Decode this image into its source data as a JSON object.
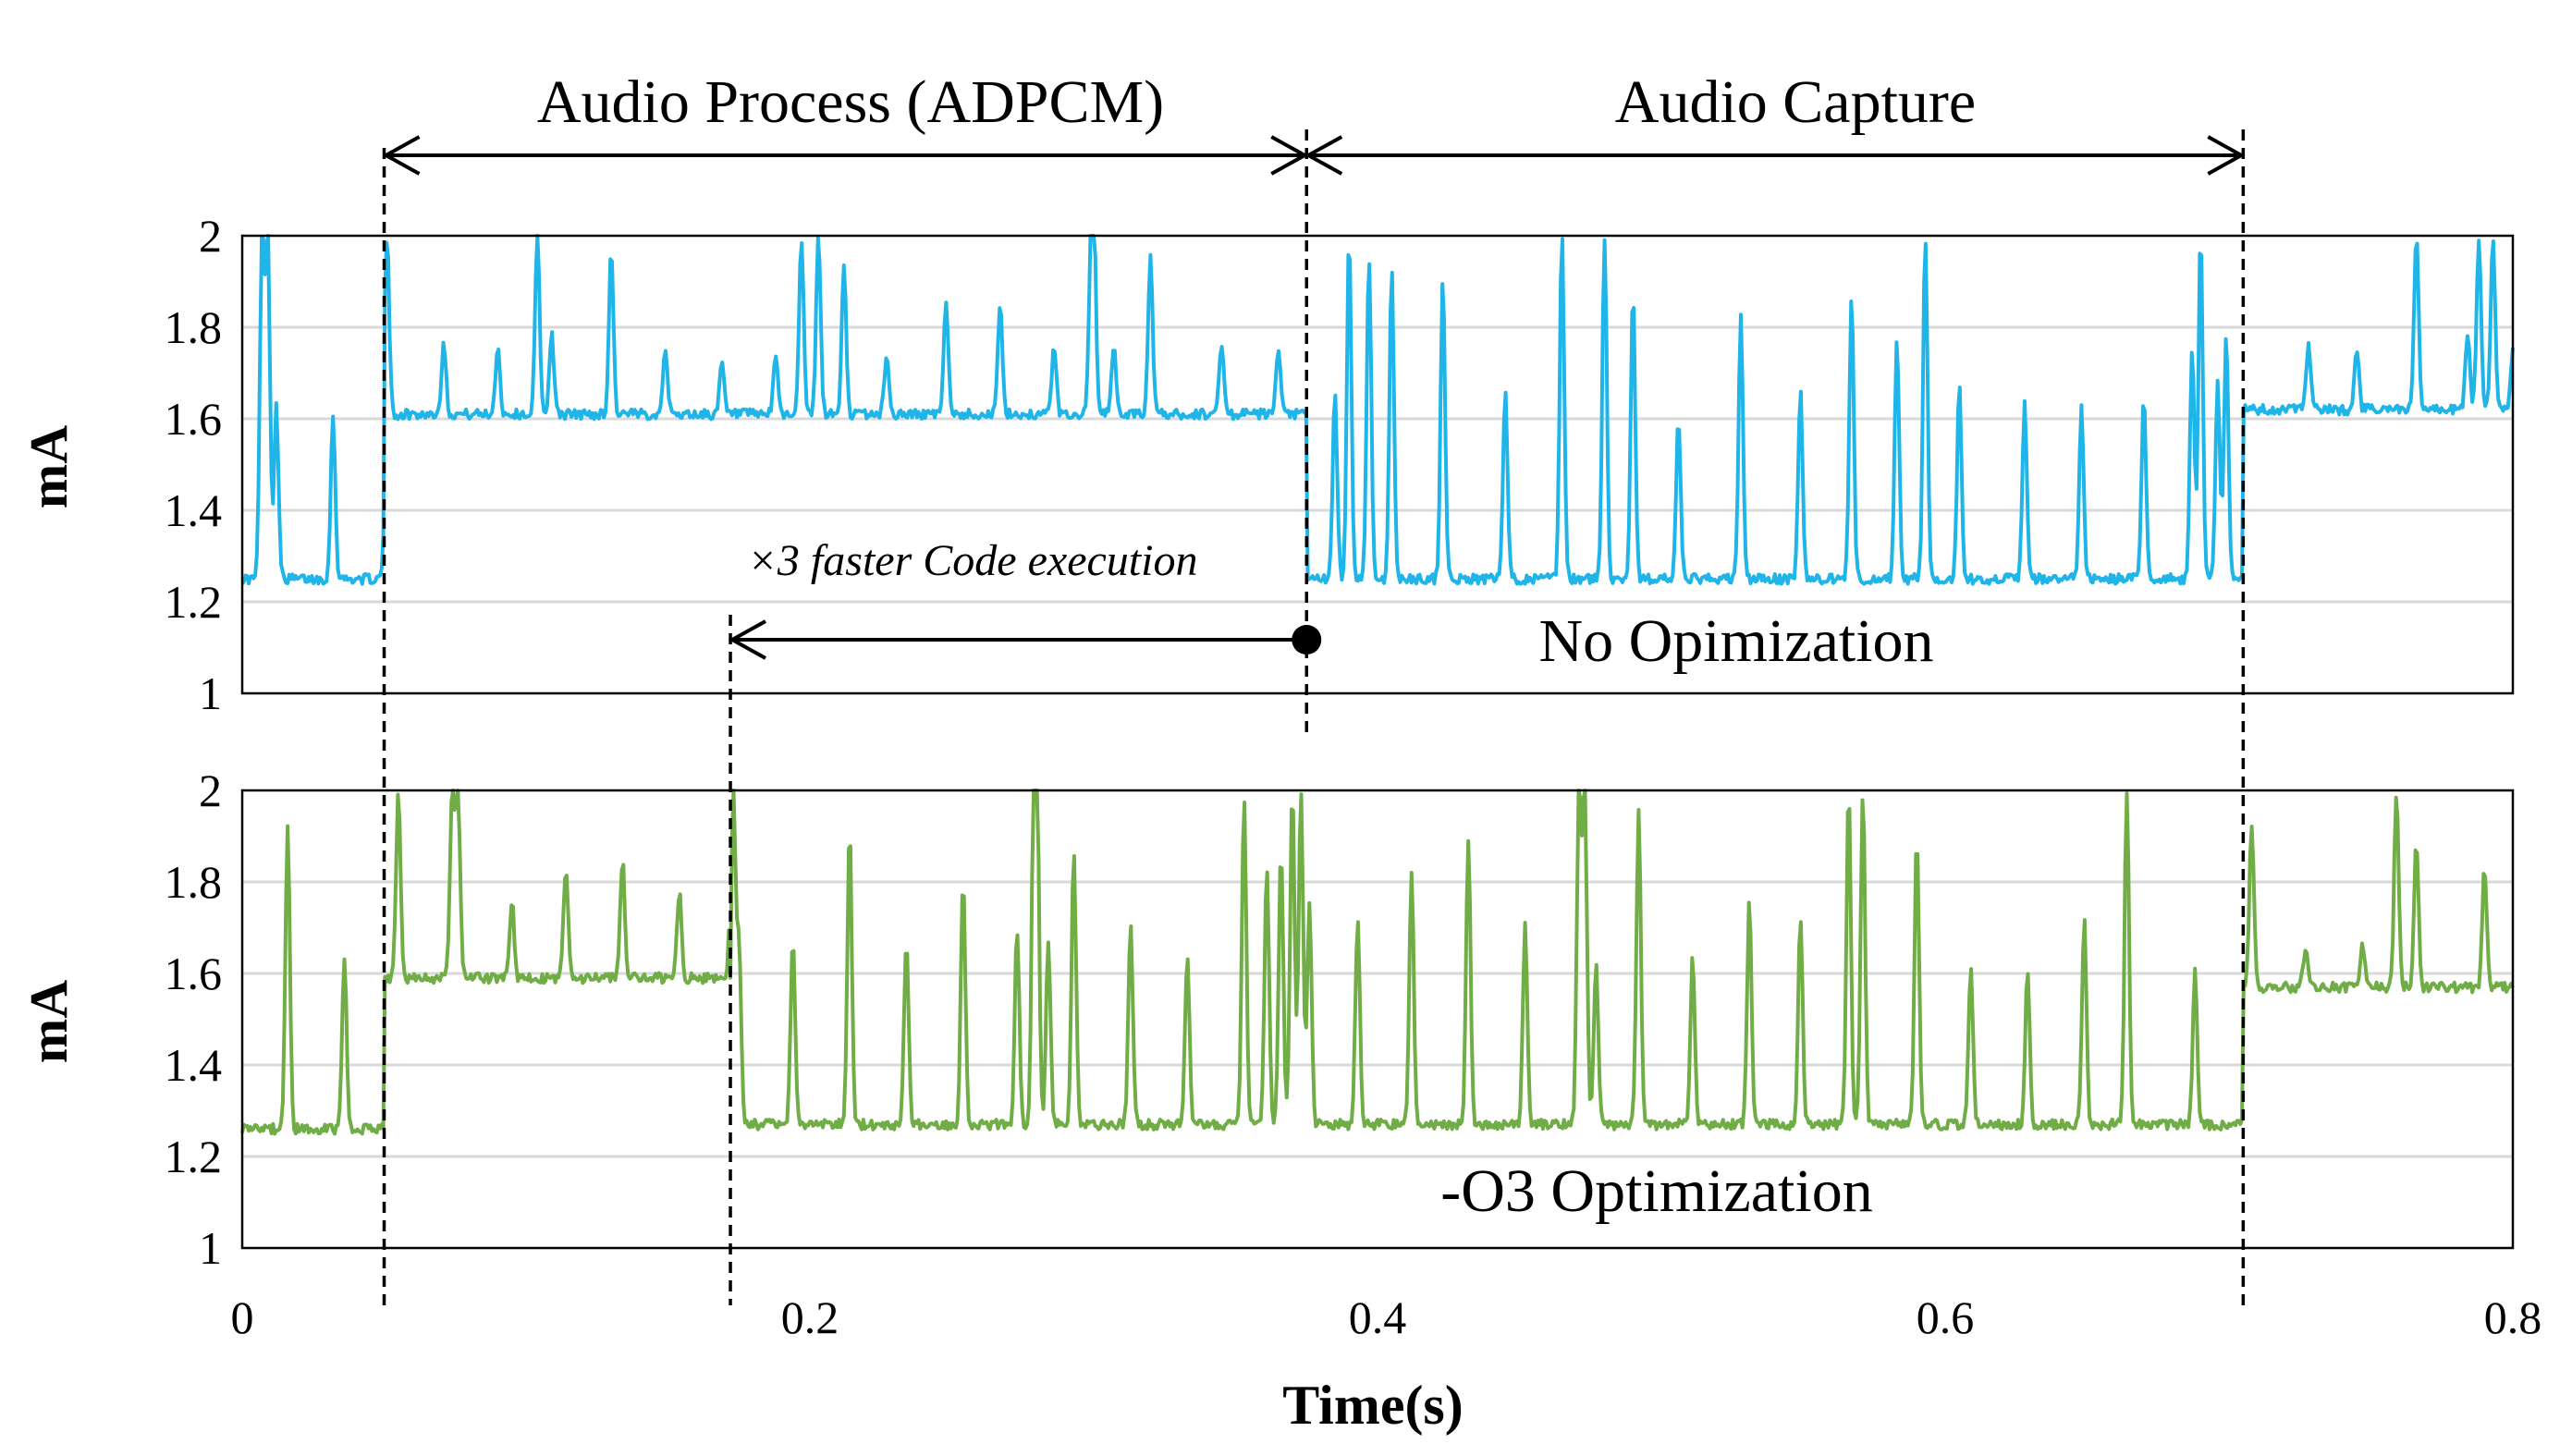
{
  "chart_data": {
    "type": "line",
    "xlabel": "Time(s)",
    "xlim": [
      0,
      0.8
    ],
    "x_ticks": [
      "0",
      "0.2",
      "0.4",
      "0.6",
      "0.8"
    ],
    "x_tick_values": [
      0,
      0.2,
      0.4,
      0.6,
      0.8
    ],
    "phase_markers_s": [
      0.05,
      0.375,
      0.705
    ],
    "optimized_process_end_s": 0.172,
    "phase_labels": {
      "audio_process": "Audio Process (ADPCM)",
      "audio_capture": "Audio Capture"
    },
    "speedup_annotation": "×3 faster Code execution",
    "panels": [
      {
        "name": "No Opimization",
        "ylabel": "mA",
        "ylim": [
          1,
          2
        ],
        "y_ticks": [
          "1",
          "1.2",
          "1.4",
          "1.6",
          "1.8",
          "2"
        ],
        "y_tick_values": [
          1,
          1.2,
          1.4,
          1.6,
          1.8,
          2
        ],
        "color": "#1fb5e8",
        "segments": [
          {
            "start": 0.0,
            "end": 0.05,
            "base": 1.25
          },
          {
            "start": 0.05,
            "end": 0.375,
            "base": 1.61
          },
          {
            "start": 0.375,
            "end": 0.705,
            "base": 1.25
          },
          {
            "start": 0.705,
            "end": 0.8,
            "base": 1.62
          }
        ],
        "spikes": [
          [
            0.007,
            2.0
          ],
          [
            0.009,
            2.0
          ],
          [
            0.012,
            1.63
          ],
          [
            0.032,
            1.61
          ],
          [
            0.051,
            2.0
          ],
          [
            0.071,
            1.77
          ],
          [
            0.09,
            1.76
          ],
          [
            0.104,
            2.0
          ],
          [
            0.109,
            1.79
          ],
          [
            0.13,
            1.97
          ],
          [
            0.149,
            1.76
          ],
          [
            0.169,
            1.72
          ],
          [
            0.188,
            1.74
          ],
          [
            0.197,
            2.0
          ],
          [
            0.203,
            2.0
          ],
          [
            0.212,
            1.93
          ],
          [
            0.227,
            1.74
          ],
          [
            0.248,
            1.86
          ],
          [
            0.267,
            1.85
          ],
          [
            0.286,
            1.76
          ],
          [
            0.299,
            1.9
          ],
          [
            0.3,
            2.0
          ],
          [
            0.307,
            1.76
          ],
          [
            0.32,
            1.96
          ],
          [
            0.345,
            1.77
          ],
          [
            0.365,
            1.75
          ],
          [
            0.385,
            1.65
          ],
          [
            0.39,
            2.0
          ],
          [
            0.397,
            1.96
          ],
          [
            0.405,
            1.93
          ],
          [
            0.423,
            1.91
          ],
          [
            0.445,
            1.66
          ],
          [
            0.465,
            2.0
          ],
          [
            0.48,
            2.0
          ],
          [
            0.49,
            1.88
          ],
          [
            0.506,
            1.59
          ],
          [
            0.528,
            1.82
          ],
          [
            0.549,
            1.66
          ],
          [
            0.567,
            1.87
          ],
          [
            0.583,
            1.77
          ],
          [
            0.593,
            2.0
          ],
          [
            0.605,
            1.67
          ],
          [
            0.628,
            1.63
          ],
          [
            0.648,
            1.62
          ],
          [
            0.67,
            1.65
          ],
          [
            0.687,
            1.75
          ],
          [
            0.69,
            2.0
          ],
          [
            0.696,
            1.69
          ],
          [
            0.699,
            1.78
          ],
          [
            0.728,
            1.76
          ],
          [
            0.745,
            1.75
          ],
          [
            0.766,
            2.0
          ],
          [
            0.784,
            1.79
          ],
          [
            0.788,
            2.0
          ],
          [
            0.793,
            2.0
          ],
          [
            0.8,
            1.75
          ]
        ]
      },
      {
        "name": "-O3 Optimization",
        "ylabel": "mA",
        "ylim": [
          1,
          2
        ],
        "y_ticks": [
          "1",
          "1.2",
          "1.4",
          "1.6",
          "1.8",
          "2"
        ],
        "y_tick_values": [
          1,
          1.2,
          1.4,
          1.6,
          1.8,
          2
        ],
        "color": "#70ad47",
        "segments": [
          {
            "start": 0.0,
            "end": 0.05,
            "base": 1.26
          },
          {
            "start": 0.05,
            "end": 0.172,
            "base": 1.59
          },
          {
            "start": 0.172,
            "end": 0.705,
            "base": 1.27
          },
          {
            "start": 0.705,
            "end": 0.8,
            "base": 1.57
          }
        ],
        "spikes": [
          [
            0.016,
            1.92
          ],
          [
            0.036,
            1.64
          ],
          [
            0.055,
            1.99
          ],
          [
            0.074,
            2.0
          ],
          [
            0.076,
            2.0
          ],
          [
            0.095,
            1.76
          ],
          [
            0.114,
            1.83
          ],
          [
            0.134,
            1.85
          ],
          [
            0.154,
            1.78
          ],
          [
            0.173,
            2.0
          ],
          [
            0.175,
            1.67
          ],
          [
            0.194,
            1.67
          ],
          [
            0.214,
            1.91
          ],
          [
            0.234,
            1.68
          ],
          [
            0.254,
            1.81
          ],
          [
            0.273,
            1.7
          ],
          [
            0.279,
            2.0
          ],
          [
            0.28,
            1.92
          ],
          [
            0.284,
            1.67
          ],
          [
            0.293,
            1.87
          ],
          [
            0.313,
            1.71
          ],
          [
            0.333,
            1.64
          ],
          [
            0.353,
            1.98
          ],
          [
            0.361,
            1.84
          ],
          [
            0.366,
            1.87
          ],
          [
            0.37,
            2.0
          ],
          [
            0.373,
            2.0
          ],
          [
            0.376,
            1.76
          ],
          [
            0.393,
            1.72
          ],
          [
            0.412,
            1.82
          ],
          [
            0.432,
            1.9
          ],
          [
            0.452,
            1.71
          ],
          [
            0.471,
            2.0
          ],
          [
            0.473,
            2.0
          ],
          [
            0.477,
            1.62
          ],
          [
            0.492,
            1.95
          ],
          [
            0.511,
            1.63
          ],
          [
            0.531,
            1.76
          ],
          [
            0.549,
            1.73
          ],
          [
            0.566,
            2.0
          ],
          [
            0.571,
            2.0
          ],
          [
            0.59,
            1.91
          ],
          [
            0.609,
            1.61
          ],
          [
            0.629,
            1.61
          ],
          [
            0.649,
            1.72
          ],
          [
            0.664,
            2.0
          ],
          [
            0.688,
            1.6
          ],
          [
            0.708,
            1.93
          ],
          [
            0.727,
            1.66
          ],
          [
            0.747,
            1.66
          ],
          [
            0.759,
            2.0
          ],
          [
            0.766,
            1.89
          ],
          [
            0.79,
            1.83
          ]
        ]
      }
    ]
  }
}
